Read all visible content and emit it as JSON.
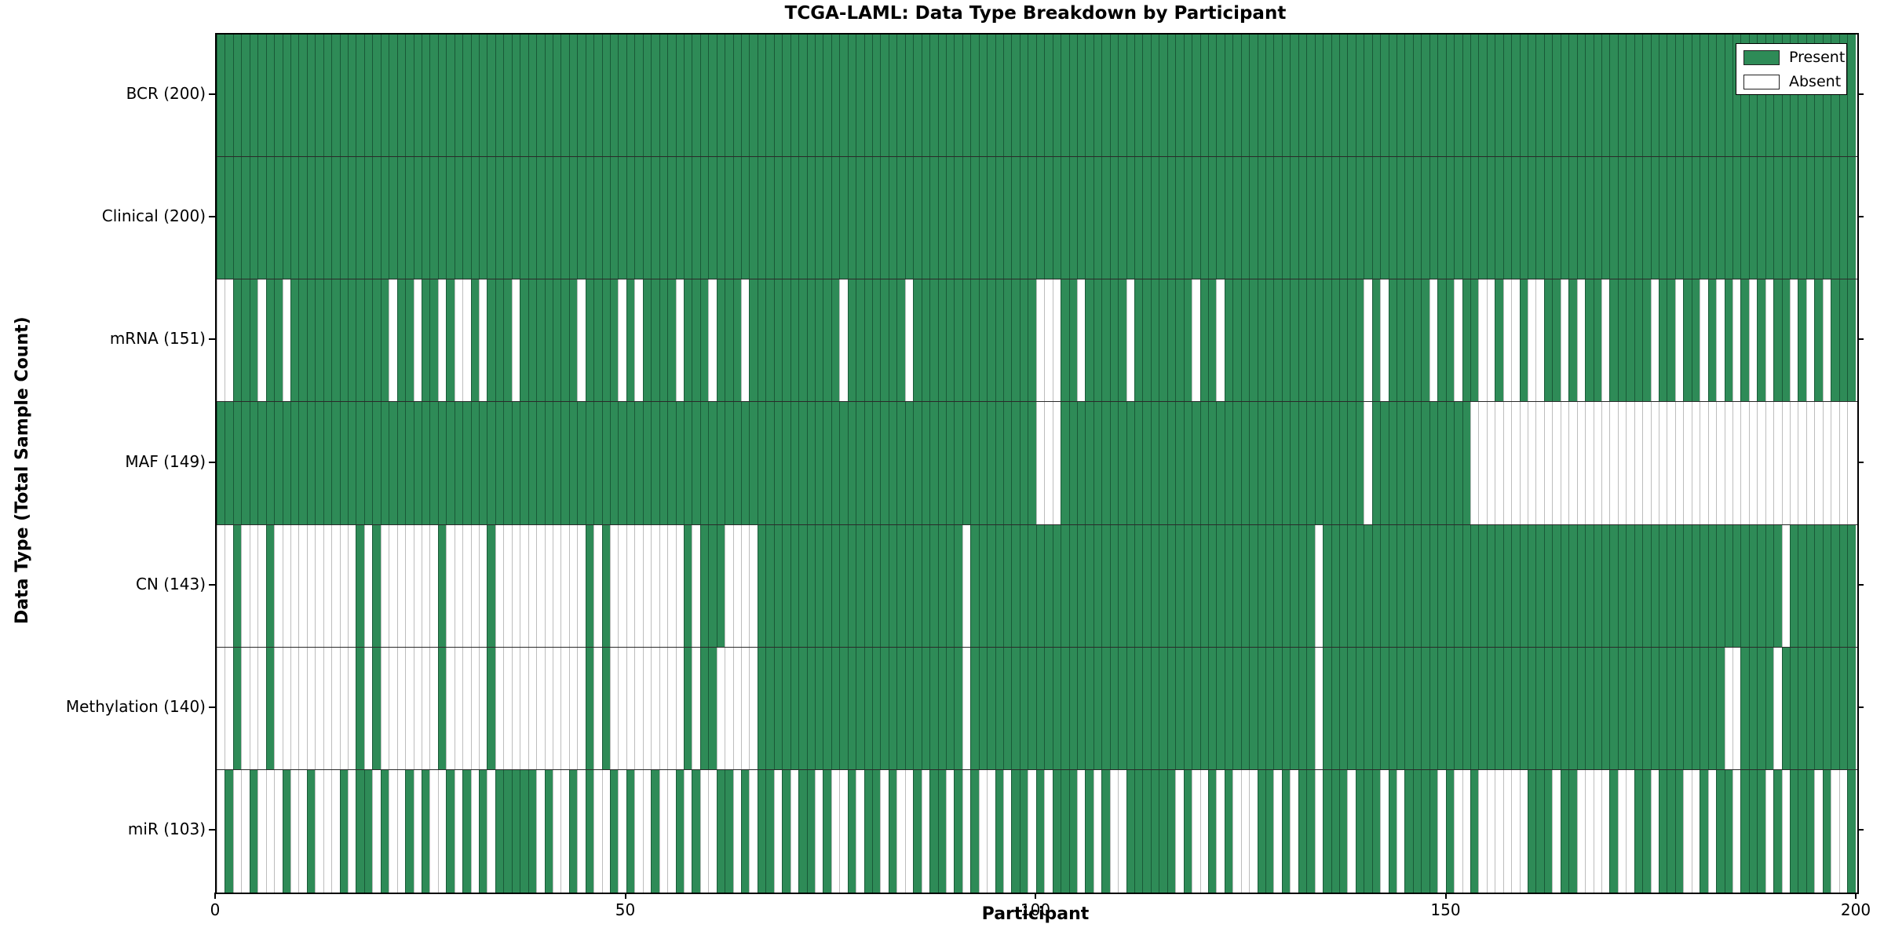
{
  "title": "TCGA-LAML: Data Type Breakdown by Participant",
  "x_axis": {
    "label": "Participant",
    "ticks": [
      "0",
      "50",
      "100",
      "150",
      "200"
    ],
    "range": [
      0,
      200
    ]
  },
  "y_axis": {
    "label": "Data Type (Total Sample Count)"
  },
  "legend": {
    "present_label": "Present",
    "absent_label": "Absent"
  },
  "colors": {
    "present": "#2e8b57",
    "absent": "#ffffff",
    "present_edge": "#1d5c39",
    "absent_edge": "#bdbdbd",
    "row_divider": "#2a2a2a",
    "spine": "#000000"
  },
  "chart_data": {
    "type": "heatmap",
    "title": "TCGA-LAML: Data Type Breakdown by Participant",
    "xlabel": "Participant",
    "ylabel": "Data Type (Total Sample Count)",
    "x_range": [
      0,
      200
    ],
    "x_ticks": [
      0,
      50,
      100,
      150,
      200
    ],
    "n_participants": 200,
    "legend_entries": [
      "Present",
      "Absent"
    ],
    "legend_position": "upper right",
    "cell_values": "1=present(green), 0=absent(white); absent_indices lists participant columns with no data",
    "rows": [
      {
        "label": "BCR (200)",
        "name": "BCR",
        "present_count": 200,
        "absent_indices": []
      },
      {
        "label": "Clinical (200)",
        "name": "Clinical",
        "present_count": 200,
        "absent_indices": []
      },
      {
        "label": "mRNA (151)",
        "name": "mRNA",
        "present_count": 151,
        "absent_indices": [
          0,
          1,
          5,
          8,
          21,
          24,
          27,
          29,
          30,
          32,
          36,
          44,
          49,
          51,
          56,
          60,
          64,
          76,
          84,
          100,
          101,
          102,
          105,
          111,
          119,
          122,
          140,
          142,
          148,
          151,
          154,
          155,
          157,
          158,
          160,
          161,
          164,
          166,
          169,
          175,
          178,
          181,
          183,
          185,
          187,
          189,
          192,
          194,
          196
        ]
      },
      {
        "label": "MAF (149)",
        "name": "MAF",
        "present_count": 149,
        "absent_indices": [
          100,
          101,
          102,
          140,
          153,
          154,
          155,
          156,
          157,
          158,
          159,
          160,
          161,
          162,
          163,
          164,
          165,
          166,
          167,
          168,
          169,
          170,
          171,
          172,
          173,
          174,
          175,
          176,
          177,
          178,
          179,
          180,
          181,
          182,
          183,
          184,
          185,
          186,
          187,
          188,
          189,
          190,
          191,
          192,
          193,
          194,
          195,
          196,
          197,
          198,
          199
        ]
      },
      {
        "label": "CN (143)",
        "name": "CN",
        "present_count": 143,
        "absent_indices": [
          0,
          1,
          3,
          4,
          5,
          7,
          8,
          9,
          10,
          11,
          12,
          13,
          14,
          15,
          16,
          18,
          20,
          21,
          22,
          23,
          24,
          25,
          26,
          28,
          29,
          30,
          31,
          32,
          34,
          35,
          36,
          37,
          38,
          39,
          40,
          41,
          42,
          43,
          44,
          46,
          48,
          49,
          50,
          51,
          52,
          53,
          54,
          55,
          56,
          58,
          62,
          63,
          64,
          65,
          91,
          134,
          191
        ]
      },
      {
        "label": "Methylation (140)",
        "name": "Methylation",
        "present_count": 140,
        "absent_indices": [
          0,
          1,
          3,
          4,
          5,
          7,
          8,
          9,
          10,
          11,
          12,
          13,
          14,
          15,
          16,
          18,
          20,
          21,
          22,
          23,
          24,
          25,
          26,
          28,
          29,
          30,
          31,
          32,
          34,
          35,
          36,
          37,
          38,
          39,
          40,
          41,
          42,
          43,
          44,
          46,
          48,
          49,
          50,
          51,
          52,
          53,
          54,
          55,
          56,
          58,
          61,
          62,
          63,
          64,
          65,
          91,
          134,
          184,
          185,
          190
        ]
      },
      {
        "label": "miR (103)",
        "name": "miR",
        "present_count": 103,
        "absent_indices": [
          0,
          2,
          3,
          5,
          6,
          7,
          9,
          10,
          12,
          13,
          14,
          16,
          19,
          21,
          22,
          24,
          26,
          27,
          29,
          31,
          33,
          39,
          41,
          42,
          44,
          46,
          47,
          49,
          51,
          52,
          54,
          55,
          57,
          59,
          60,
          63,
          65,
          68,
          70,
          73,
          75,
          76,
          78,
          81,
          83,
          84,
          86,
          89,
          91,
          93,
          94,
          96,
          99,
          101,
          105,
          107,
          109,
          110,
          117,
          119,
          120,
          122,
          124,
          125,
          126,
          129,
          131,
          134,
          138,
          142,
          144,
          149,
          151,
          152,
          154,
          155,
          156,
          157,
          158,
          159,
          163,
          166,
          167,
          168,
          169,
          171,
          172,
          175,
          179,
          180,
          182,
          185,
          189,
          191,
          195,
          197,
          198
        ]
      }
    ]
  }
}
